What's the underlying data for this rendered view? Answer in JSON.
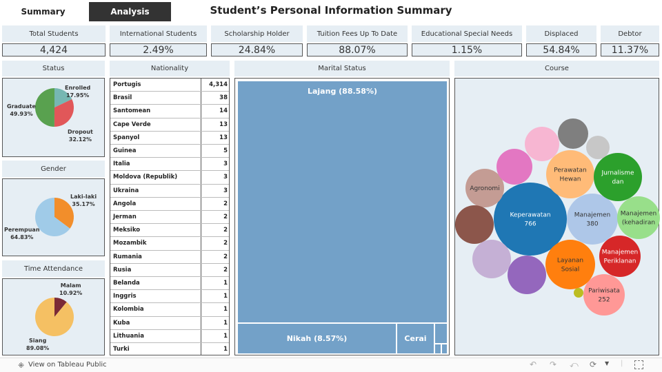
{
  "tabs": {
    "summary": "Summary",
    "analysis": "Analysis"
  },
  "title": "Student’s Personal Information Summary",
  "kpis": [
    {
      "label": "Total Students",
      "value": "4,424"
    },
    {
      "label": "International Students",
      "value": "2.49%"
    },
    {
      "label": "Scholarship Holder",
      "value": "24.84%"
    },
    {
      "label": "Tuition Fees Up To Date",
      "value": "88.07%"
    },
    {
      "label": "Educational Special Needs",
      "value": "1.15%"
    },
    {
      "label": "Displaced",
      "value": "54.84%"
    },
    {
      "label": "Debtor",
      "value": "11.37%"
    }
  ],
  "panels": {
    "status": "Status",
    "nationality": "Nationality",
    "marital": "Marital Status",
    "course": "Course",
    "gender": "Gender",
    "time": "Time Attendance"
  },
  "chart_data": [
    {
      "type": "pie",
      "title": "Status",
      "slices": [
        {
          "label": "Enrolled",
          "value": 17.95,
          "text": "17.95%",
          "color": "#76b7b2"
        },
        {
          "label": "Dropout",
          "value": 32.12,
          "text": "32.12%",
          "color": "#e15759"
        },
        {
          "label": "Graduate",
          "value": 49.93,
          "text": "49.93%",
          "color": "#59a14f"
        }
      ]
    },
    {
      "type": "pie",
      "title": "Gender",
      "slices": [
        {
          "label": "Laki-laki",
          "value": 35.17,
          "text": "35.17%",
          "color": "#f28e2b"
        },
        {
          "label": "Perempuan",
          "value": 64.83,
          "text": "64.83%",
          "color": "#a0cbe8"
        }
      ]
    },
    {
      "type": "pie",
      "title": "Time Attendance",
      "slices": [
        {
          "label": "Malam",
          "value": 10.92,
          "text": "10.92%",
          "color": "#7b2a36"
        },
        {
          "label": "Siang",
          "value": 89.08,
          "text": "89.08%",
          "color": "#f5c063"
        }
      ]
    },
    {
      "type": "table",
      "title": "Nationality",
      "rows": [
        [
          "Portugis",
          "4,314"
        ],
        [
          "Brasil",
          "38"
        ],
        [
          "Santomean",
          "14"
        ],
        [
          "Cape Verde",
          "13"
        ],
        [
          "Spanyol",
          "13"
        ],
        [
          "Guinea",
          "5"
        ],
        [
          "Italia",
          "3"
        ],
        [
          "Moldova (Republik)",
          "3"
        ],
        [
          "Ukraina",
          "3"
        ],
        [
          "Angola",
          "2"
        ],
        [
          "Jerman",
          "2"
        ],
        [
          "Meksiko",
          "2"
        ],
        [
          "Mozambik",
          "2"
        ],
        [
          "Rumania",
          "2"
        ],
        [
          "Rusia",
          "2"
        ],
        [
          "Belanda",
          "1"
        ],
        [
          "Inggris",
          "1"
        ],
        [
          "Kolombia",
          "1"
        ],
        [
          "Kuba",
          "1"
        ],
        [
          "Lithuania",
          "1"
        ],
        [
          "Turki",
          "1"
        ]
      ]
    },
    {
      "type": "treemap",
      "title": "Marital Status",
      "items": [
        {
          "label": "Lajang (88.58%)",
          "value": 88.58
        },
        {
          "label": "Nikah (8.57%)",
          "value": 8.57
        },
        {
          "label": "Cerai"
        }
      ]
    },
    {
      "type": "bubble",
      "title": "Course",
      "bubbles": [
        {
          "label": "Keperawatan",
          "value": "766",
          "color": "#1f77b4",
          "tc": "#fff"
        },
        {
          "label": "Manajemen",
          "value": "380",
          "color": "#aec7e8",
          "tc": "#333"
        },
        {
          "label": "Pariwisata",
          "value": "252",
          "color": "#ff9896",
          "tc": "#333"
        },
        {
          "label": "Perawatan Hewan",
          "color": "#ffbb78",
          "tc": "#333"
        },
        {
          "label": "Jurnalisme dan",
          "color": "#2ca02c",
          "tc": "#fff"
        },
        {
          "label": "Manajemen (kehadiran",
          "color": "#98df8a",
          "tc": "#333"
        },
        {
          "label": "Manajemen Periklanan",
          "color": "#d62728",
          "tc": "#fff"
        },
        {
          "label": "Layanan Sosial",
          "color": "#ff7f0e",
          "tc": "#333"
        },
        {
          "label": "Agronomi",
          "color": "#c49c94",
          "tc": "#333"
        },
        {
          "label": "",
          "color": "#8c564b"
        },
        {
          "label": "",
          "color": "#c5b0d5"
        },
        {
          "label": "",
          "color": "#9467bd"
        },
        {
          "label": "",
          "color": "#e377c2"
        },
        {
          "label": "",
          "color": "#f7b6d2"
        },
        {
          "label": "",
          "color": "#7f7f7f"
        },
        {
          "label": "",
          "color": "#c7c7c7"
        },
        {
          "label": "",
          "color": "#bcbd22"
        }
      ]
    }
  ],
  "footer": {
    "link": "View on Tableau Public"
  }
}
